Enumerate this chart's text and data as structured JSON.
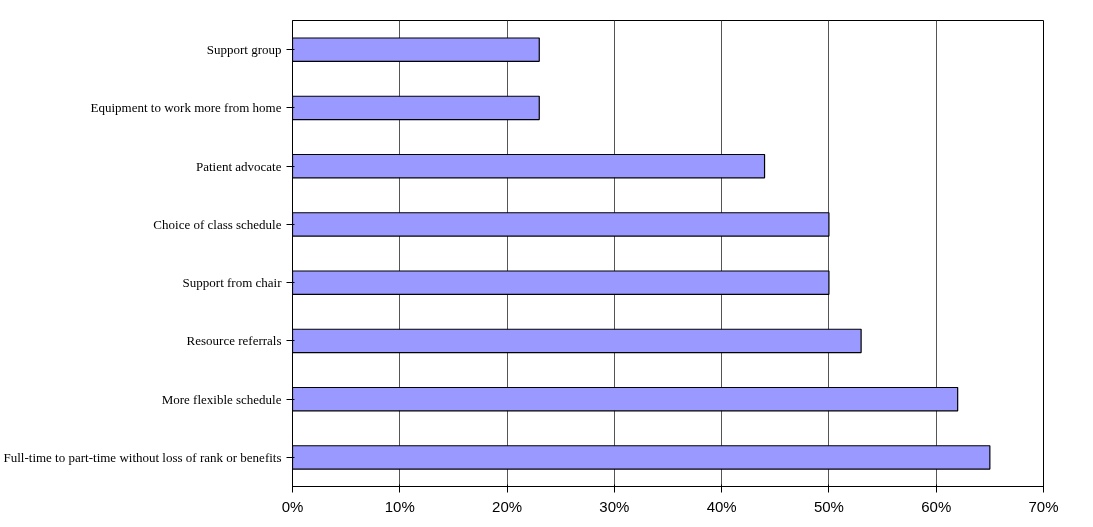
{
  "chart_data": {
    "type": "bar",
    "orientation": "horizontal",
    "categories": [
      "Support group",
      "Equipment to work more from home",
      "Patient advocate",
      "Choice of class schedule",
      "Support from chair",
      "Resource referrals",
      "More flexible schedule",
      "Full-time to part-time without loss of rank or benefits"
    ],
    "values": [
      23,
      23,
      44,
      50,
      50,
      53,
      62,
      65
    ],
    "color": "#9999ff",
    "xlim": [
      0,
      70
    ],
    "xticks": [
      {
        "value": 0,
        "label": "0%"
      },
      {
        "value": 10,
        "label": "10%"
      },
      {
        "value": 20,
        "label": "20%"
      },
      {
        "value": 30,
        "label": "30%"
      },
      {
        "value": 40,
        "label": "40%"
      },
      {
        "value": 50,
        "label": "50%"
      },
      {
        "value": 60,
        "label": "60%"
      },
      {
        "value": 70,
        "label": "70%"
      }
    ],
    "grid": "x"
  }
}
